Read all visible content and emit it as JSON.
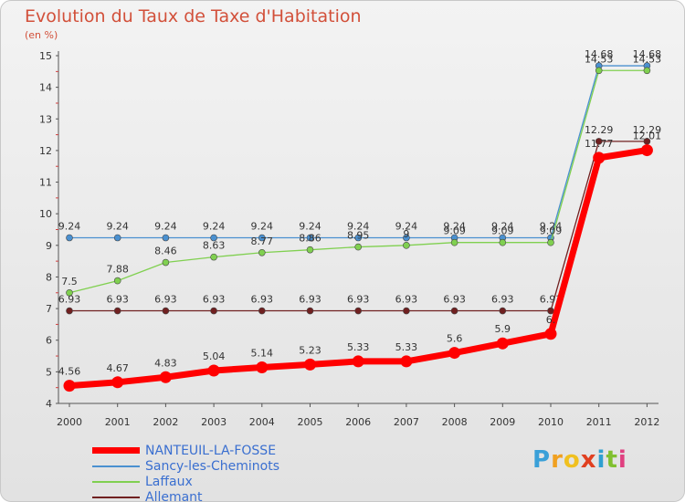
{
  "header": {
    "title": "Evolution du Taux de Taxe d'Habitation",
    "unit": "(en %)"
  },
  "brand": {
    "letters": [
      "P",
      "r",
      "o",
      "x",
      "i",
      "t",
      "i"
    ],
    "colors": [
      "#3aa0d8",
      "#f0a020",
      "#f0c020",
      "#e04020",
      "#30a0d0",
      "#80c030",
      "#e04080"
    ]
  },
  "chart_data": {
    "type": "line",
    "x": [
      "2000",
      "2001",
      "2002",
      "2003",
      "2004",
      "2005",
      "2006",
      "2007",
      "2008",
      "2009",
      "2010",
      "2011",
      "2012"
    ],
    "ylim": [
      4,
      15
    ],
    "yticks": [
      "4",
      "5",
      "6",
      "7",
      "8",
      "9",
      "10",
      "11",
      "12",
      "13",
      "14",
      "15"
    ],
    "grid": false,
    "legend_position": "bottom-left",
    "series": [
      {
        "name": "NANTEUIL-LA-FOSSE",
        "color": "#ff0000",
        "values": [
          4.56,
          4.67,
          4.83,
          5.04,
          5.14,
          5.23,
          5.33,
          5.33,
          5.6,
          5.9,
          6.2,
          11.77,
          12.01
        ],
        "labels": [
          "4.56",
          "4.67",
          "4.83",
          "5.04",
          "5.14",
          "5.23",
          "5.33",
          "5.33",
          "5.6",
          "5.9",
          "6.",
          "11.77",
          "12.01"
        ]
      },
      {
        "name": "Sancy-les-Cheminots",
        "color": "#4a90d0",
        "values": [
          9.24,
          9.24,
          9.24,
          9.24,
          9.24,
          9.24,
          9.24,
          9.24,
          9.24,
          9.24,
          9.24,
          14.68,
          14.68
        ],
        "labels": [
          "9.24",
          "9.24",
          "9.24",
          "9.24",
          "9.24",
          "9.24",
          "9.24",
          "9.24",
          "9.24",
          "9.24",
          "9.24",
          "14.68",
          "14.68"
        ]
      },
      {
        "name": "Laffaux",
        "color": "#80d050",
        "values": [
          7.5,
          7.88,
          8.46,
          8.63,
          8.77,
          8.86,
          8.95,
          9,
          9.09,
          9.09,
          9.09,
          14.53,
          14.53
        ],
        "labels": [
          "7.5",
          "7.88",
          "8.46",
          "8.63",
          "8.77",
          "8.86",
          "8.95",
          "9",
          "9.09",
          "9.09",
          "9.09",
          "14.53",
          "14.53"
        ]
      },
      {
        "name": "Allemant",
        "color": "#702020",
        "values": [
          6.93,
          6.93,
          6.93,
          6.93,
          6.93,
          6.93,
          6.93,
          6.93,
          6.93,
          6.93,
          6.93,
          12.29,
          12.29
        ],
        "labels": [
          "6.93",
          "6.93",
          "6.93",
          "6.93",
          "6.93",
          "6.93",
          "6.93",
          "6.93",
          "6.93",
          "6.93",
          "6.93",
          "12.29",
          "12.29"
        ]
      }
    ]
  }
}
